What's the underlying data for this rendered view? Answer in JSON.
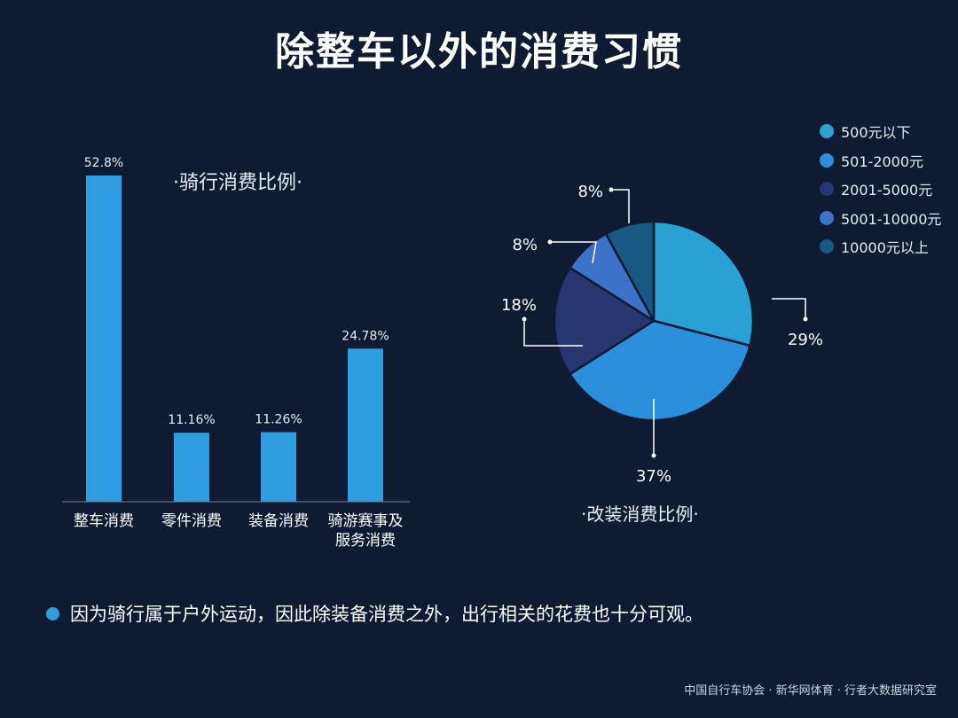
{
  "page": {
    "title": "除整车以外的消费习惯",
    "note": "因为骑行属于户外运动，因此除装备消费之外，出行相关的花费也十分可观。",
    "footer": "中国自行车协会 · 新华网体育 · 行者大数据研究室"
  },
  "chart_data": [
    {
      "type": "bar",
      "title": "·骑行消费比例·",
      "categories": [
        "整车消费",
        "零件消费",
        "装备消费",
        "骑游赛事及服务消费"
      ],
      "category_lines": [
        [
          "整车消费"
        ],
        [
          "零件消费"
        ],
        [
          "装备消费"
        ],
        [
          "骑游赛事及",
          "服务消费"
        ]
      ],
      "values": [
        52.8,
        11.16,
        11.26,
        24.78
      ],
      "value_labels": [
        "52.8%",
        "11.16%",
        "11.26%",
        "24.78%"
      ],
      "ylim": [
        0,
        52.8
      ],
      "bar_color": "#2f9ee0",
      "grid": false
    },
    {
      "type": "pie",
      "title": "·改装消费比例·",
      "labels": [
        "500元以下",
        "501-2000元",
        "2001-5000元",
        "5001-10000元",
        "10000元以上"
      ],
      "values": [
        29,
        37,
        18,
        8,
        8
      ],
      "value_labels": [
        "29%",
        "37%",
        "18%",
        "8%",
        "8%"
      ],
      "colors": [
        "#2aa1d4",
        "#2c8fdb",
        "#263670",
        "#3c73c8",
        "#175885"
      ],
      "legend_position": "top-right"
    }
  ]
}
